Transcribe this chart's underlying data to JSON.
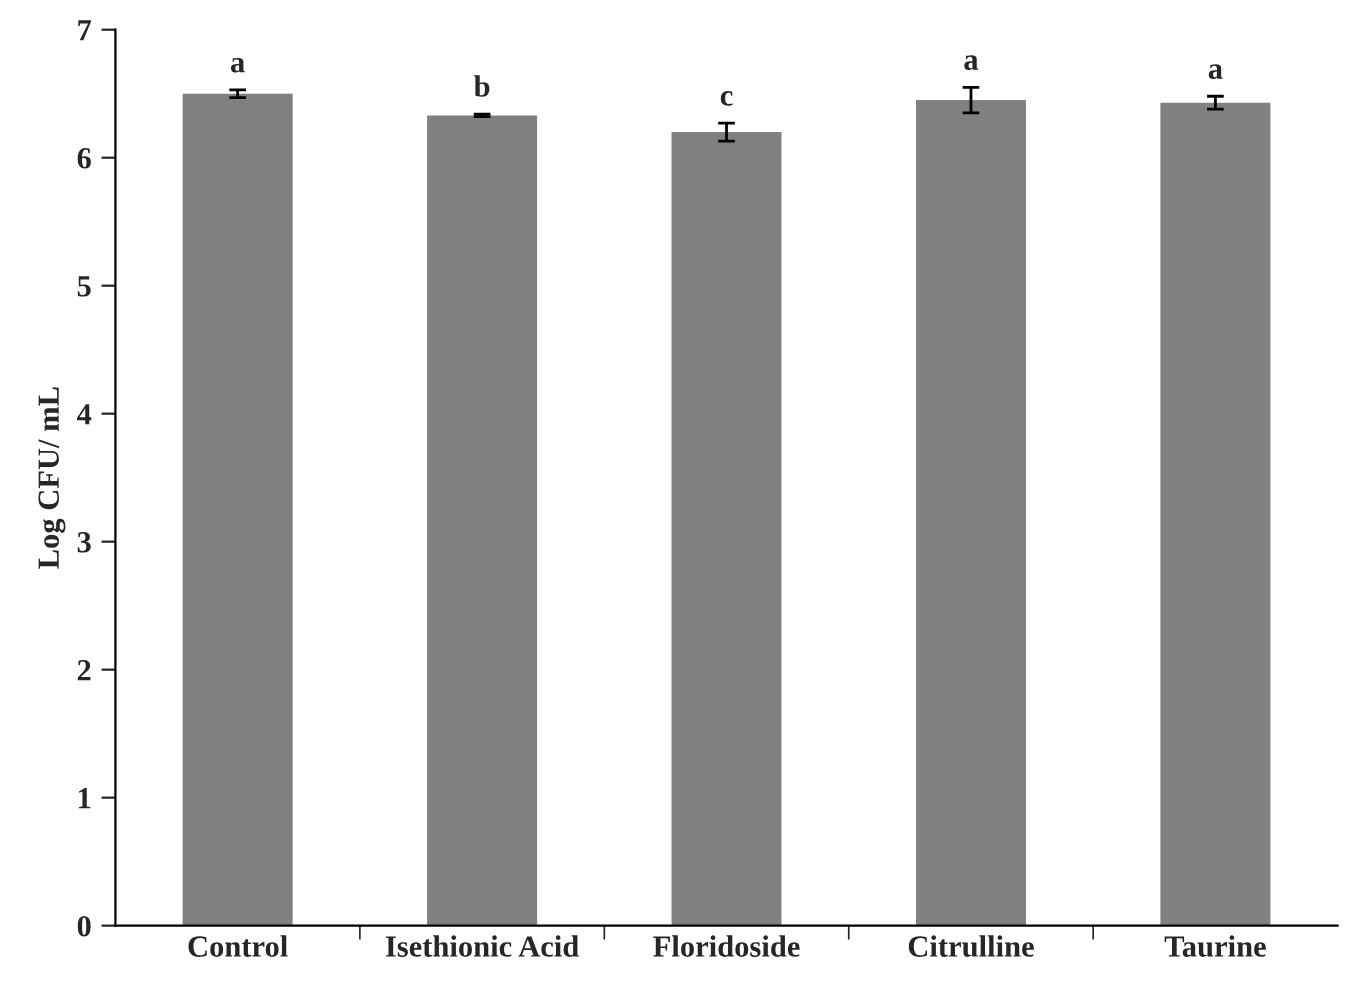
{
  "chart_data": {
    "type": "bar",
    "ylabel": "Log CFU/ mL",
    "categories": [
      "Control",
      "Isethionic Acid",
      "Floridoside",
      "Citrulline",
      "Taurine"
    ],
    "values": [
      6.5,
      6.33,
      6.2,
      6.45,
      6.43
    ],
    "errors": [
      0.03,
      0.01,
      0.07,
      0.1,
      0.05
    ],
    "color": "#808080",
    "ylim": [
      0,
      7
    ],
    "yticks": [
      0,
      1,
      2,
      3,
      4,
      5,
      6,
      7
    ],
    "grid": false,
    "legend": false,
    "annotations": [
      {
        "text": "a",
        "x": "Control",
        "y": 6.53
      },
      {
        "text": "b",
        "x": "Isethionic Acid",
        "y": 6.34
      },
      {
        "text": "c",
        "x": "Floridoside",
        "y": 6.27
      },
      {
        "text": "a",
        "x": "Citrulline",
        "y": 6.55
      },
      {
        "text": "a",
        "x": "Taurine",
        "y": 6.48
      }
    ]
  }
}
